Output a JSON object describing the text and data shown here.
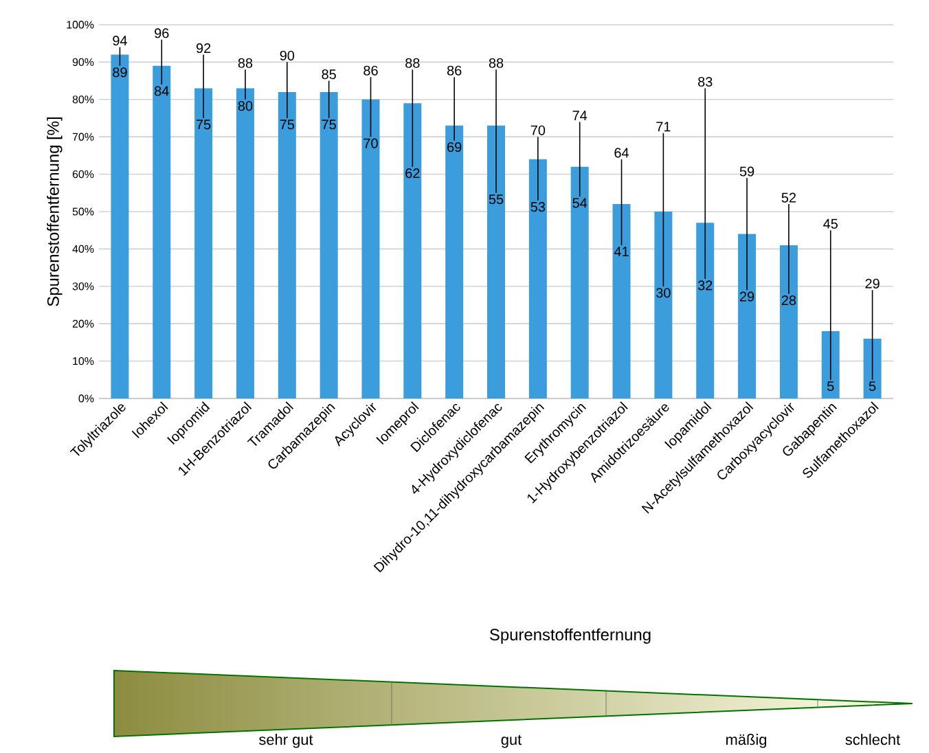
{
  "chart_data": {
    "type": "bar",
    "ylabel": "Spurenstoffentfernung [%]",
    "categories": [
      "Tolyltriazole",
      "Iohexol",
      "Iopromid",
      "1H-Benzotriazol",
      "Tramadol",
      "Carbamazepin",
      "Acyclovir",
      "Iomeprol",
      "Diclofenac",
      "4-Hydroxydiclofenac",
      "Dihydro-10,11-dihydroxycarbamazepin",
      "Erythromycin",
      "1-Hydroxybenzotriazol",
      "Amidotrizoesäure",
      "Iopamidol",
      "N-Acetylsulfamethoxazol",
      "Carboxyacyclovir",
      "Gabapentin",
      "Sulfamethoxazol"
    ],
    "values": [
      92,
      89,
      83,
      83,
      82,
      82,
      80,
      79,
      73,
      73,
      64,
      62,
      52,
      50,
      47,
      44,
      41,
      18,
      16
    ],
    "errors": [
      [
        89,
        94
      ],
      [
        84,
        96
      ],
      [
        75,
        92
      ],
      [
        80,
        88
      ],
      [
        75,
        90
      ],
      [
        75,
        85
      ],
      [
        70,
        86
      ],
      [
        62,
        88
      ],
      [
        69,
        86
      ],
      [
        55,
        88
      ],
      [
        53,
        70
      ],
      [
        54,
        74
      ],
      [
        41,
        64
      ],
      [
        30,
        71
      ],
      [
        32,
        83
      ],
      [
        29,
        59
      ],
      [
        28,
        52
      ],
      [
        5,
        45
      ],
      [
        5,
        29
      ]
    ],
    "color": "#3b9ddb",
    "ylim": [
      0,
      100
    ],
    "yticks": [
      {
        "value": 0,
        "label": "0%"
      },
      {
        "value": 10,
        "label": "10%"
      },
      {
        "value": 20,
        "label": "20%"
      },
      {
        "value": 30,
        "label": "30%"
      },
      {
        "value": 40,
        "label": "40%"
      },
      {
        "value": 50,
        "label": "50%"
      },
      {
        "value": 60,
        "label": "60%"
      },
      {
        "value": 70,
        "label": "70%"
      },
      {
        "value": 80,
        "label": "80%"
      },
      {
        "value": 90,
        "label": "90%"
      },
      {
        "value": 100,
        "label": "100%"
      }
    ],
    "grid": "y",
    "annotations": [
      "Spurenstoffentfernung",
      "sehr gut",
      "gut",
      "mäßig",
      "schlecht",
      {
        "text": "94",
        "x": "Tolyltriazole",
        "y": 94
      },
      {
        "text": "89",
        "x": "Tolyltriazole",
        "y": 89
      },
      {
        "text": "96",
        "x": "Iohexol",
        "y": 96
      },
      {
        "text": "84",
        "x": "Iohexol",
        "y": 84
      },
      {
        "text": "92",
        "x": "Iopromid",
        "y": 92
      },
      {
        "text": "75",
        "x": "Iopromid",
        "y": 75
      },
      {
        "text": "88",
        "x": "1H-Benzotriazol",
        "y": 88
      },
      {
        "text": "80",
        "x": "1H-Benzotriazol",
        "y": 80
      },
      {
        "text": "90",
        "x": "Tramadol",
        "y": 90
      },
      {
        "text": "75",
        "x": "Tramadol",
        "y": 75
      },
      {
        "text": "85",
        "x": "Carbamazepin",
        "y": 85
      },
      {
        "text": "75",
        "x": "Carbamazepin",
        "y": 75
      },
      {
        "text": "86",
        "x": "Acyclovir",
        "y": 86
      },
      {
        "text": "70",
        "x": "Acyclovir",
        "y": 70
      },
      {
        "text": "88",
        "x": "Iomeprol",
        "y": 88
      },
      {
        "text": "62",
        "x": "Iomeprol",
        "y": 62
      },
      {
        "text": "86",
        "x": "Diclofenac",
        "y": 86
      },
      {
        "text": "69",
        "x": "Diclofenac",
        "y": 69
      },
      {
        "text": "88",
        "x": "4-Hydroxydiclofenac",
        "y": 88
      },
      {
        "text": "55",
        "x": "4-Hydroxydiclofenac",
        "y": 55
      },
      {
        "text": "70",
        "x": "Dihydro-10,11-dihydroxycarbamazepin",
        "y": 70
      },
      {
        "text": "53",
        "x": "Dihydro-10,11-dihydroxycarbamazepin",
        "y": 53
      },
      {
        "text": "74",
        "x": "Erythromycin",
        "y": 74
      },
      {
        "text": "54",
        "x": "Erythromycin",
        "y": 54
      },
      {
        "text": "64",
        "x": "1-Hydroxybenzotriazol",
        "y": 64
      },
      {
        "text": "41",
        "x": "1-Hydroxybenzotriazol",
        "y": 41
      },
      {
        "text": "71",
        "x": "Amidotrizoesäure",
        "y": 71
      },
      {
        "text": "30",
        "x": "Amidotrizoesäure",
        "y": 30
      },
      {
        "text": "83",
        "x": "Iopamidol",
        "y": 83
      },
      {
        "text": "32",
        "x": "Iopamidol",
        "y": 32
      },
      {
        "text": "59",
        "x": "N-Acetylsulfamethoxazol",
        "y": 59
      },
      {
        "text": "29",
        "x": "N-Acetylsulfamethoxazol",
        "y": 29
      },
      {
        "text": "52",
        "x": "Carboxyacyclovir",
        "y": 52
      },
      {
        "text": "28",
        "x": "Carboxyacyclovir",
        "y": 28
      },
      {
        "text": "45",
        "x": "Gabapentin",
        "y": 45
      },
      {
        "text": "5",
        "x": "Gabapentin",
        "y": 5
      },
      {
        "text": "29",
        "x": "Sulfamethoxazol",
        "y": 29
      },
      {
        "text": "5",
        "x": "Sulfamethoxazol",
        "y": 5
      }
    ]
  }
}
